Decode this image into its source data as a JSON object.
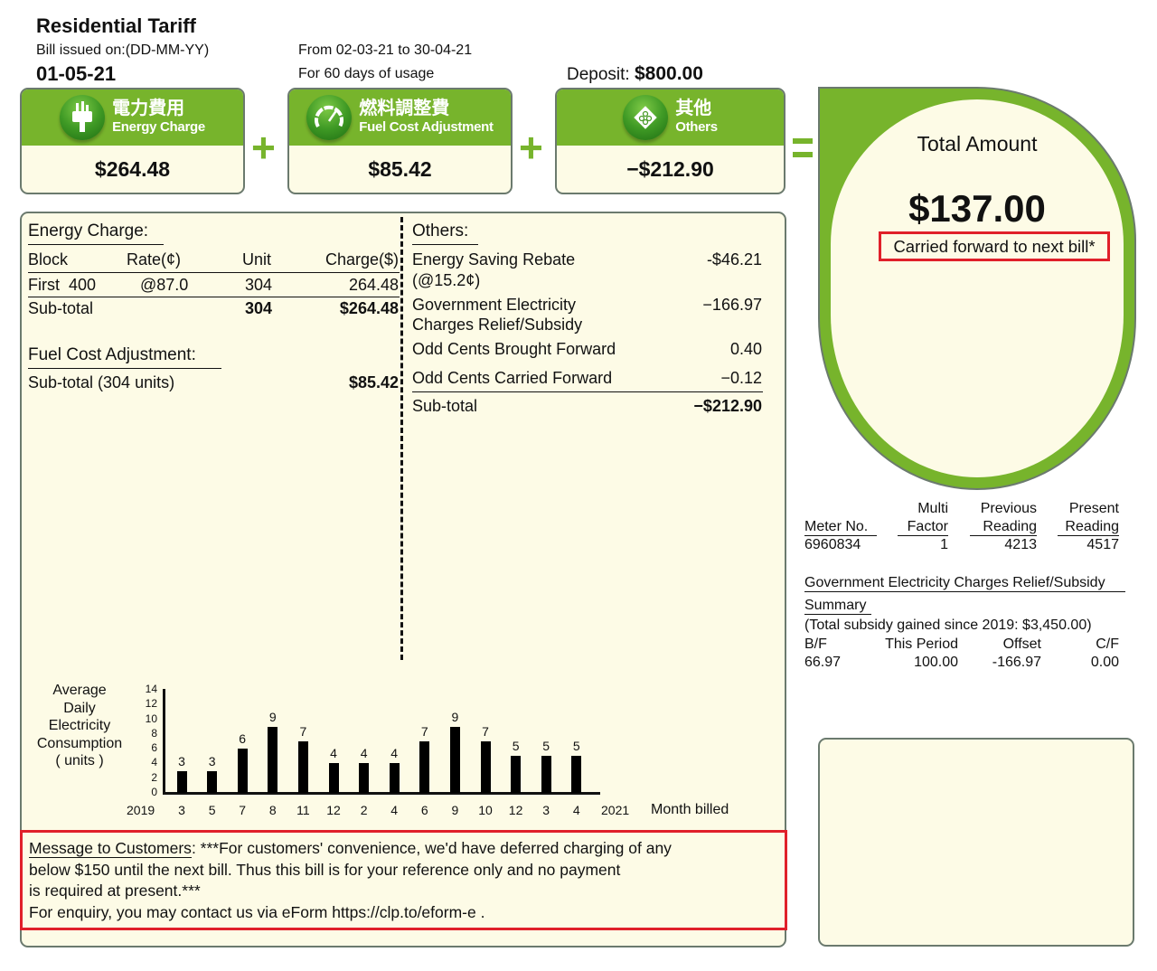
{
  "header": {
    "title": "Residential Tariff",
    "issued_label": "Bill issued on:(DD-MM-YY)",
    "issued_date": "01-05-21",
    "period": "From 02-03-21 to 30-04-21",
    "days": "For 60 days of usage",
    "deposit_label": "Deposit:",
    "deposit_value": "$800.00"
  },
  "cards": [
    {
      "zh": "電力費用",
      "en": "Energy Charge",
      "value": "$264.48",
      "icon": "plug-icon"
    },
    {
      "zh": "燃料調整費",
      "en": "Fuel Cost Adjustment",
      "value": "$85.42",
      "icon": "gauge-icon"
    },
    {
      "zh": "其他",
      "en": "Others",
      "value": "−$212.90",
      "icon": "puzzle-icon"
    }
  ],
  "operators": {
    "plus": "+",
    "equals": "="
  },
  "colors": {
    "brand_green": "#77b42c",
    "panel_bg": "#fdfbe6",
    "highlight_red": "#e0202a",
    "border": "#6b7a6e"
  },
  "total": {
    "label": "Total Amount",
    "amount": "$137.00",
    "note": "Carried forward to next bill*"
  },
  "energy_charge": {
    "heading": "Energy Charge:",
    "columns": [
      "Block",
      "Rate(¢)",
      "Unit",
      "Charge($)"
    ],
    "rows": [
      {
        "block": "First  400",
        "rate": "@87.0",
        "unit": "304",
        "charge": "264.48"
      }
    ],
    "subtotal": {
      "label": "Sub-total",
      "unit": "304",
      "charge": "$264.48"
    }
  },
  "fuel_cost": {
    "heading": "Fuel Cost Adjustment:",
    "subtotal_label": "Sub-total (304 units)",
    "subtotal_value": "$85.42"
  },
  "others": {
    "heading": "Others:",
    "items": [
      {
        "label1": "Energy Saving Rebate",
        "label2": "(@15.2¢)",
        "value": "-$46.21"
      },
      {
        "label1": "Government Electricity",
        "label2": "Charges Relief/Subsidy",
        "value": "−166.97"
      },
      {
        "label1": "Odd Cents Brought Forward",
        "value": "0.40"
      },
      {
        "label1": "Odd Cents Carried Forward",
        "value": "−0.12"
      }
    ],
    "subtotal_label": "Sub-total",
    "subtotal_value": "−$212.90"
  },
  "meter": {
    "headers": {
      "meter_no": "Meter No.",
      "multi_1": "Multi",
      "multi_2": "Factor",
      "prev_1": "Previous",
      "prev_2": "Reading",
      "pres_1": "Present",
      "pres_2": "Reading"
    },
    "values": {
      "meter_no": "6960834",
      "multi": "1",
      "prev": "4213",
      "pres": "4517"
    }
  },
  "subsidy": {
    "title": "Government Electricity Charges Relief/Subsidy",
    "summary": "Summary",
    "total_note": "(Total subsidy gained since 2019: $3,450.00)",
    "columns": [
      "B/F",
      "This Period",
      "Offset",
      "C/F"
    ],
    "values": [
      "66.97",
      "100.00",
      "-166.97",
      "0.00"
    ]
  },
  "chart_data": {
    "type": "bar",
    "title": "Average Daily Electricity Consumption ( units )",
    "ylabel_lines": [
      "Average",
      "Daily",
      "Electricity",
      "Consumption",
      "( units )"
    ],
    "xlabel": "Month billed",
    "x_start_label": "2019",
    "x_end_label": "2021",
    "categories": [
      "3",
      "5",
      "7",
      "8",
      "11",
      "12",
      "2",
      "4",
      "6",
      "9",
      "10",
      "12",
      "3",
      "4"
    ],
    "values": [
      3,
      3,
      6,
      9,
      7,
      4,
      4,
      4,
      7,
      9,
      7,
      5,
      5,
      5
    ],
    "yticks": [
      "14",
      "12",
      "10",
      "8",
      "6",
      "4",
      "2",
      "0"
    ],
    "ylim": [
      0,
      14
    ],
    "grid": false,
    "legend": "none"
  },
  "message": {
    "label": "Message to Customers",
    "text1": ": ***For customers' convenience, we'd have deferred charging of any",
    "text2": "below $150 until the next bill. Thus this bill is for your reference only and no payment",
    "text3": "is required at present.***",
    "text4": "For enquiry, you may contact us via eForm https://clp.to/eform-e ."
  }
}
